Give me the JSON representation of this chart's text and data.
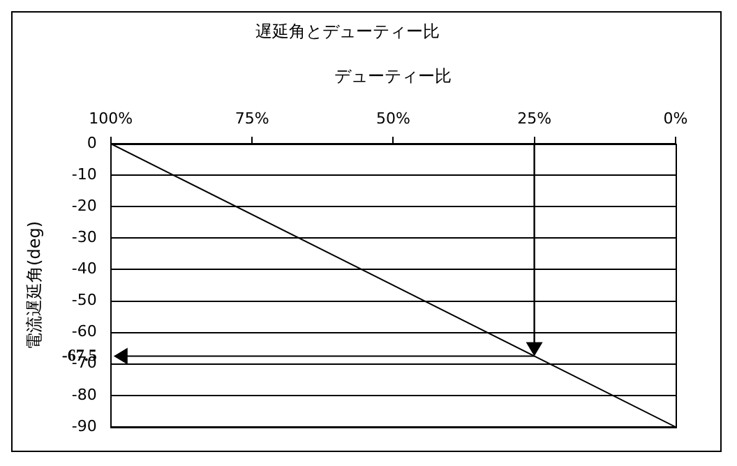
{
  "chart_data": {
    "type": "line",
    "title": "遅延角とデューティー比",
    "xlabel": "デューティー比",
    "ylabel": "電流遅延角(deg)",
    "x": [
      100,
      0
    ],
    "series": [
      {
        "color": "#000000",
        "values": [
          0,
          -90
        ]
      }
    ],
    "xlim": [
      100,
      0
    ],
    "xticks": [
      {
        "value": 100,
        "label": "100%"
      },
      {
        "value": 75,
        "label": "75%"
      },
      {
        "value": 50,
        "label": "50%"
      },
      {
        "value": 25,
        "label": "25%"
      },
      {
        "value": 0,
        "label": "0%"
      }
    ],
    "ylim": [
      -90,
      0
    ],
    "yticks": [
      0,
      -10,
      -20,
      -30,
      -40,
      -50,
      -60,
      -67.5,
      -70,
      -80,
      -90
    ],
    "grid": "y",
    "legend": false,
    "marker": "none",
    "line_style": "solid"
  }
}
